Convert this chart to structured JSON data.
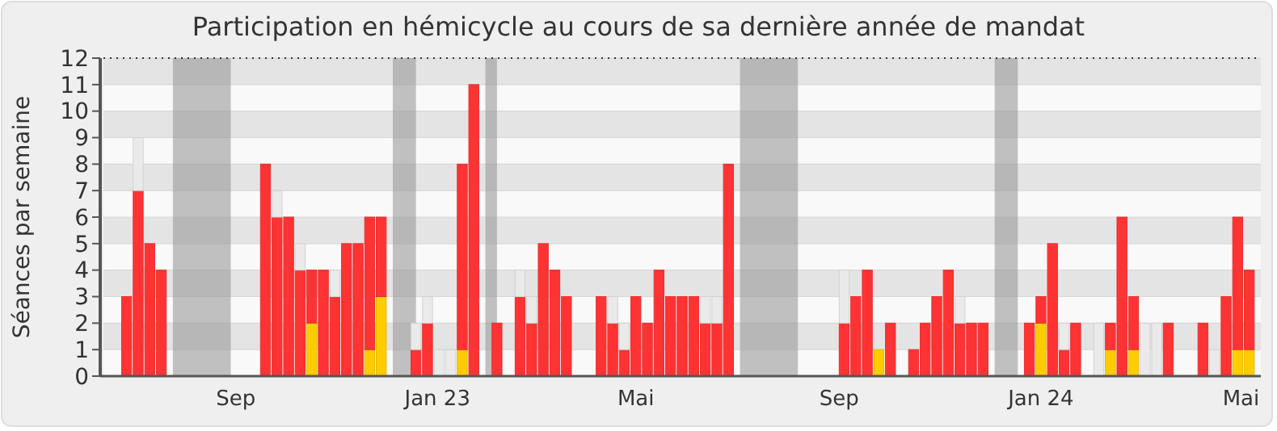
{
  "chart_data": {
    "type": "bar",
    "stacked": true,
    "title": "Participation en hémicycle au cours de sa dernière année de mandat",
    "ylabel": "Séances par semaine",
    "x": [
      "2022-06-27",
      "2022-07-04",
      "2022-07-11",
      "2022-07-18",
      "2022-09-19",
      "2022-09-26",
      "2022-10-03",
      "2022-10-10",
      "2022-10-17",
      "2022-10-24",
      "2022-10-31",
      "2022-11-07",
      "2022-11-14",
      "2022-11-21",
      "2022-11-28",
      "2022-12-19",
      "2022-12-26",
      "2023-01-02",
      "2023-01-09",
      "2023-01-16",
      "2023-01-23",
      "2023-02-06",
      "2023-02-20",
      "2023-02-27",
      "2023-03-06",
      "2023-03-13",
      "2023-03-20",
      "2023-04-10",
      "2023-04-17",
      "2023-04-24",
      "2023-05-01",
      "2023-05-08",
      "2023-05-15",
      "2023-05-22",
      "2023-05-29",
      "2023-06-05",
      "2023-06-12",
      "2023-06-19",
      "2023-06-26",
      "2023-09-04",
      "2023-09-11",
      "2023-09-18",
      "2023-09-25",
      "2023-10-02",
      "2023-10-16",
      "2023-10-23",
      "2023-10-30",
      "2023-11-06",
      "2023-11-13",
      "2023-11-20",
      "2023-11-27",
      "2023-12-25",
      "2024-01-01",
      "2024-01-08",
      "2024-01-15",
      "2024-01-22",
      "2024-02-05",
      "2024-02-12",
      "2024-02-19",
      "2024-02-26",
      "2024-03-04",
      "2024-03-11",
      "2024-03-18",
      "2024-04-08",
      "2024-04-15",
      "2024-04-22",
      "2024-04-29",
      "2024-05-06"
    ],
    "series": [
      {
        "color": "#ffcc00",
        "values": [
          null,
          null,
          null,
          null,
          null,
          null,
          null,
          null,
          2,
          null,
          null,
          null,
          null,
          1,
          3,
          null,
          null,
          null,
          null,
          1,
          null,
          null,
          null,
          null,
          null,
          null,
          null,
          null,
          null,
          null,
          null,
          null,
          null,
          null,
          null,
          null,
          null,
          null,
          null,
          null,
          null,
          null,
          1,
          null,
          null,
          null,
          null,
          null,
          null,
          null,
          null,
          null,
          2,
          null,
          null,
          null,
          null,
          1,
          null,
          1,
          null,
          null,
          null,
          null,
          null,
          null,
          1,
          1
        ]
      },
      {
        "color": "#ff3333",
        "values": [
          3,
          7,
          5,
          4,
          8,
          6,
          6,
          4,
          2,
          4,
          3,
          5,
          5,
          5,
          3,
          1,
          2,
          null,
          null,
          7,
          11,
          2,
          3,
          2,
          5,
          4,
          3,
          3,
          2,
          1,
          3,
          2,
          4,
          3,
          3,
          3,
          2,
          2,
          8,
          2,
          3,
          4,
          null,
          2,
          1,
          2,
          3,
          4,
          2,
          2,
          2,
          2,
          1,
          5,
          1,
          2,
          null,
          1,
          6,
          2,
          null,
          null,
          2,
          2,
          null,
          3,
          5,
          3
        ]
      },
      {
        "color": "#eaeaea",
        "values": [
          null,
          2,
          null,
          null,
          null,
          1,
          null,
          1,
          null,
          null,
          1,
          null,
          null,
          null,
          null,
          1,
          1,
          1,
          1,
          null,
          null,
          null,
          1,
          1,
          null,
          null,
          null,
          null,
          1,
          1,
          null,
          null,
          null,
          null,
          null,
          null,
          1,
          1,
          null,
          2,
          null,
          null,
          null,
          null,
          null,
          null,
          null,
          null,
          1,
          null,
          null,
          null,
          null,
          null,
          1,
          null,
          2,
          null,
          null,
          null,
          2,
          2,
          null,
          null,
          1,
          null,
          null,
          null
        ]
      }
    ],
    "xlim": [
      "2022-06-13",
      "2024-05-13"
    ],
    "xticks": [
      {
        "value": "2022-09-01",
        "label": "Sep"
      },
      {
        "value": "2023-01-01",
        "label": "Jan 23"
      },
      {
        "value": "2023-05-01",
        "label": "Mai"
      },
      {
        "value": "2023-09-01",
        "label": "Sep"
      },
      {
        "value": "2024-01-01",
        "label": "Jan 24"
      },
      {
        "value": "2024-05-01",
        "label": "Mai"
      }
    ],
    "ylim": [
      0,
      12
    ],
    "yticks": [
      0,
      1,
      2,
      3,
      4,
      5,
      6,
      7,
      8,
      9,
      10,
      11,
      12
    ],
    "grid": "y",
    "bands": [
      {
        "axis": "x",
        "from": "2022-07-25",
        "to": "2022-08-29",
        "color": "#999999"
      },
      {
        "axis": "x",
        "from": "2022-12-05",
        "to": "2022-12-19",
        "color": "#999999"
      },
      {
        "axis": "x",
        "from": "2023-01-30",
        "to": "2023-02-06",
        "color": "#999999"
      },
      {
        "axis": "x",
        "from": "2023-07-03",
        "to": "2023-08-07",
        "color": "#999999"
      },
      {
        "axis": "x",
        "from": "2023-12-04",
        "to": "2023-12-18",
        "color": "#999999"
      }
    ]
  }
}
